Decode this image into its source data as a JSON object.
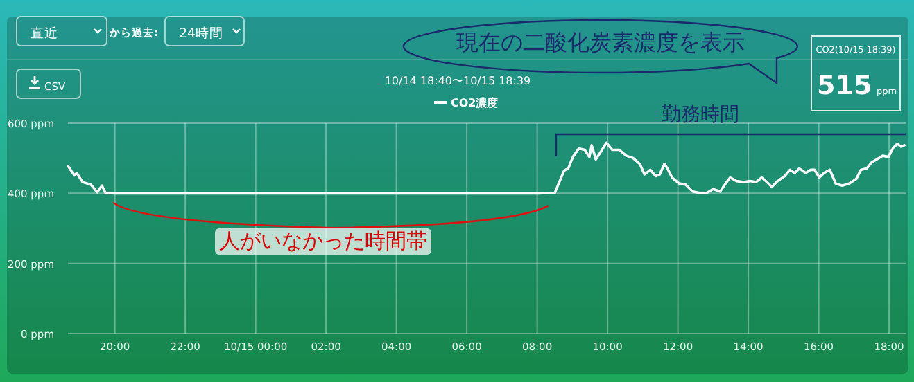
{
  "chart_data": {
    "type": "line",
    "title": "10/14 18:40〜10/15 18:39",
    "series": [
      {
        "name": "CO2濃度",
        "color": "#ffffff",
        "x": [
          "--10-14T18:40",
          "--10-14T18:51",
          "--10-14T18:55",
          "--10-14T19:05",
          "--10-14T19:19",
          "--10-14T19:30",
          "--10-14T19:38",
          "--10-14T19:44",
          "--10-14T20:00",
          "--10-14T22:00",
          "--10-15T00:00",
          "--10-15T02:00",
          "--10-15T04:00",
          "--10-15T06:00",
          "--10-15T08:00",
          "--10-15T08:30",
          "--10-15T08:36",
          "--10-15T08:46",
          "--10-15T08:53",
          "--10-15T09:01",
          "--10-15T09:11",
          "--10-15T09:21",
          "--10-15T09:29",
          "--10-15T09:33",
          "--10-15T09:40",
          "--10-15T09:48",
          "--10-15T09:58",
          "--10-15T10:08",
          "--10-15T10:20",
          "--10-15T10:32",
          "--10-15T10:43",
          "--10-15T10:55",
          "--10-15T11:03",
          "--10-15T11:13",
          "--10-15T11:22",
          "--10-15T11:29",
          "--10-15T11:37",
          "--10-15T11:42",
          "--10-15T11:50",
          "--10-15T12:02",
          "--10-15T12:13",
          "--10-15T12:25",
          "--10-15T12:37",
          "--10-15T12:49",
          "--10-15T13:00",
          "--10-15T13:12",
          "--10-15T13:20",
          "--10-15T13:29",
          "--10-15T13:40",
          "--10-15T13:52",
          "--10-15T14:03",
          "--10-15T14:13",
          "--10-15T14:23",
          "--10-15T14:32",
          "--10-15T14:40",
          "--10-15T14:50",
          "--10-15T15:02",
          "--10-15T15:11",
          "--10-15T15:19",
          "--10-15T15:27",
          "--10-15T15:38",
          "--10-15T15:46",
          "--10-15T15:53",
          "--10-15T16:01",
          "--10-15T16:09",
          "--10-15T16:19",
          "--10-15T16:29",
          "--10-15T16:40",
          "--10-15T16:52",
          "--10-15T17:04",
          "--10-15T17:12",
          "--10-15T17:22",
          "--10-15T17:30",
          "--10-15T17:39",
          "--10-15T17:49",
          "--10-15T17:59",
          "--10-15T18:07",
          "--10-15T18:14",
          "--10-15T18:20",
          "--10-15T18:26"
        ],
        "values": [
          478,
          451,
          458,
          432,
          425,
          403,
          422,
          401,
          400,
          400,
          400,
          400,
          400,
          400,
          400,
          401,
          425,
          465,
          471,
          504,
          528,
          524,
          504,
          537,
          497,
          517,
          544,
          524,
          524,
          507,
          501,
          484,
          454,
          467,
          449,
          454,
          484,
          471,
          445,
          428,
          425,
          405,
          401,
          401,
          412,
          405,
          425,
          445,
          435,
          432,
          435,
          432,
          445,
          432,
          418,
          435,
          449,
          467,
          458,
          471,
          458,
          467,
          467,
          445,
          458,
          467,
          428,
          422,
          428,
          441,
          467,
          471,
          488,
          497,
          507,
          504,
          530,
          541,
          533,
          537
        ]
      }
    ],
    "xlim": [
      "--10-14T18:40",
      "--10-15T18:29"
    ],
    "xticks": [
      {
        "value": "--10-14T20:00",
        "label": "20:00"
      },
      {
        "value": "--10-14T22:00",
        "label": "22:00"
      },
      {
        "value": "--10-15T00:00",
        "label": "10/15 00:00"
      },
      {
        "value": "--10-15T02:00",
        "label": "02:00"
      },
      {
        "value": "--10-15T04:00",
        "label": "04:00"
      },
      {
        "value": "--10-15T06:00",
        "label": "06:00"
      },
      {
        "value": "--10-15T08:00",
        "label": "08:00"
      },
      {
        "value": "--10-15T10:00",
        "label": "10:00"
      },
      {
        "value": "--10-15T12:00",
        "label": "12:00"
      },
      {
        "value": "--10-15T14:00",
        "label": "14:00"
      },
      {
        "value": "--10-15T16:00",
        "label": "16:00"
      },
      {
        "value": "--10-15T18:00",
        "label": "18:00"
      }
    ],
    "ylim": [
      0,
      600
    ],
    "yticks": [
      {
        "value": 0,
        "label": "0 ppm"
      },
      {
        "value": 200,
        "label": "200 ppm"
      },
      {
        "value": 400,
        "label": "400 ppm"
      },
      {
        "value": 600,
        "label": "600 ppm"
      }
    ],
    "grid": true,
    "legend": "top",
    "annotations": [
      "直近",
      "から過去:",
      "24時間",
      "CSV",
      "現在の二酸化炭素濃度を表示",
      "CO2(10/15 18:39)",
      "515",
      "ppm",
      "勤務時間",
      "人がいなかった時間帯"
    ]
  }
}
